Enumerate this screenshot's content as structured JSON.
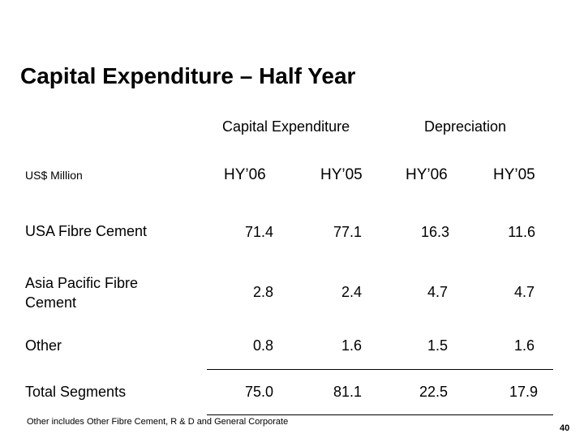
{
  "title": "Capital Expenditure – Half Year",
  "group_headers": {
    "capex": "Capital Expenditure",
    "depreciation": "Depreciation"
  },
  "unit_label": "US$ Million",
  "columns": [
    "HY’06",
    "HY’05",
    "HY’06",
    "HY’05"
  ],
  "rows": [
    {
      "label": "USA Fibre Cement",
      "values": [
        "71.4",
        "77.1",
        "16.3",
        "11.6"
      ]
    },
    {
      "label": "Asia Pacific Fibre Cement",
      "values": [
        "2.8",
        "2.4",
        "4.7",
        "4.7"
      ]
    },
    {
      "label": "Other",
      "values": [
        "0.8",
        "1.6",
        "1.5",
        "1.6"
      ]
    },
    {
      "label": "Total Segments",
      "values": [
        "75.0",
        "81.1",
        "22.5",
        "17.9"
      ]
    }
  ],
  "footnote": "Other includes Other Fibre Cement, R & D and General Corporate",
  "page_number": "40"
}
